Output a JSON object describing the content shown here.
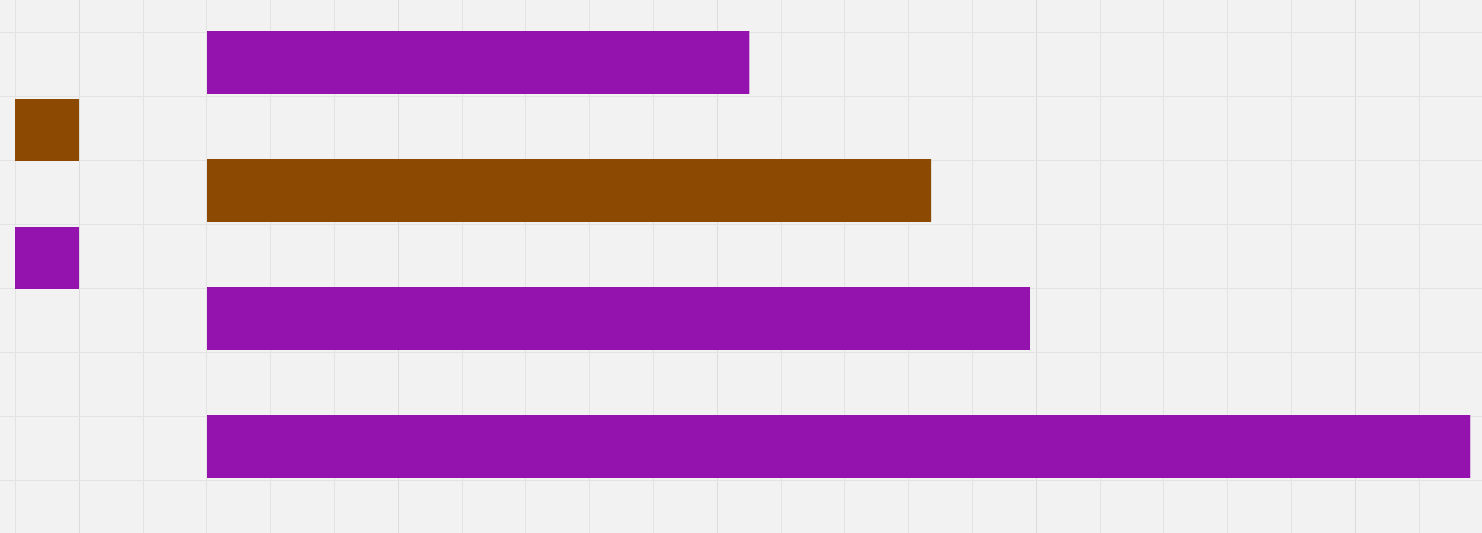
{
  "colors": {
    "background": "#f2f2f2",
    "grid_minor": "#e3e3e3",
    "grid_major": "#dcdcdc",
    "purple": "#9412ae",
    "brown": "#8b4901"
  },
  "chart_data": {
    "type": "bar",
    "orientation": "horizontal",
    "title": "",
    "xlabel": "",
    "ylabel": "",
    "grid": true,
    "legend": {
      "entries": [
        {
          "label": "",
          "color": "#8b4901"
        },
        {
          "label": "",
          "color": "#9412ae"
        }
      ]
    },
    "series": [
      {
        "color": "#9412ae",
        "rows": [
          0,
          2,
          3
        ],
        "values": [
          8.5,
          12.9,
          19.8
        ]
      },
      {
        "color": "#8b4901",
        "rows": [
          1
        ],
        "values": [
          11.35
        ]
      }
    ],
    "bars": [
      {
        "row": 0,
        "value": 8.5,
        "color": "#9412ae"
      },
      {
        "row": 1,
        "value": 11.35,
        "color": "#8b4901"
      },
      {
        "row": 2,
        "value": 12.9,
        "color": "#9412ae"
      },
      {
        "row": 3,
        "value": 19.8,
        "color": "#9412ae"
      }
    ],
    "xlim": [
      0,
      20.3
    ]
  }
}
